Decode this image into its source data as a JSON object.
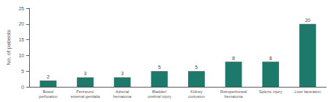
{
  "chart_data": {
    "type": "bar",
    "categories": [
      "Bowel\nperforation",
      "Perineum/\nexternal genitalia",
      "Adrenal\nhematoma",
      "Bladder/\nurethral injury",
      "Kidney\ncontusion",
      "Retroperitoneal\nhematoma",
      "Splenic injury",
      "Liver laceration"
    ],
    "values": [
      2,
      3,
      3,
      5,
      5,
      8,
      8,
      20
    ],
    "color": "#1d7a6b",
    "ylabel": "No. of patients",
    "ylim": [
      0,
      25
    ],
    "yticks": [
      0,
      5,
      10,
      15,
      20,
      25
    ],
    "grid": false,
    "data_labels": true
  }
}
